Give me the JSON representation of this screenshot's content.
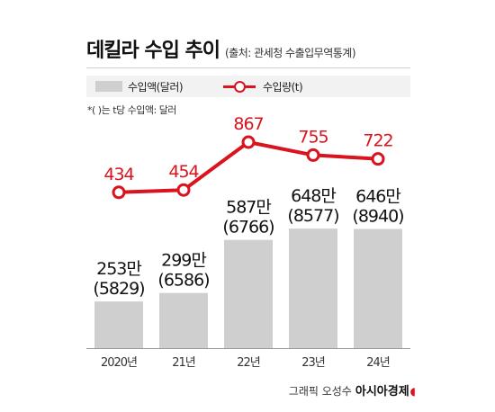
{
  "header": {
    "title": "데킬라 수입 추이",
    "source": "(출처: 관세청 수출입무역통계)"
  },
  "legend": {
    "bar_label": "수입액(달러)",
    "line_label": "수입량(t)"
  },
  "note": "*( )는 t당 수입액: 달러",
  "credit": {
    "graphic": "그래픽 오성수",
    "brand": "아시아경제"
  },
  "colors": {
    "bar": "#cfcfcf",
    "line": "#d9141e"
  },
  "chart_data": {
    "type": "bar",
    "categories": [
      "2020년",
      "21년",
      "22년",
      "23년",
      "24년"
    ],
    "series": [
      {
        "name": "수입액(달러)",
        "type": "bar",
        "values": [
          2530000,
          2990000,
          5870000,
          6480000,
          6460000
        ],
        "labels": [
          "253만",
          "299만",
          "587만",
          "648만",
          "646만"
        ],
        "sublabels": [
          "(5829)",
          "(6586)",
          "(6766)",
          "(8577)",
          "(8940)"
        ]
      },
      {
        "name": "수입량(t)",
        "type": "line",
        "values": [
          434,
          454,
          867,
          755,
          722
        ],
        "labels": [
          "434",
          "454",
          "867",
          "755",
          "722"
        ]
      }
    ],
    "title": "데킬라 수입 추이",
    "xlabel": "",
    "ylabel": "",
    "grid": false,
    "legend": "top-left"
  }
}
